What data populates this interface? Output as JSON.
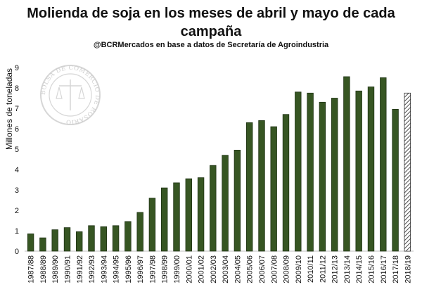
{
  "chart_data": {
    "type": "bar",
    "title": "Molienda de soja en los meses de abril y mayo de cada campaña",
    "subtitle": "@BCRMercados en base a datos de Secretaría de Agroindustria",
    "ylabel": "Millones de toneladas",
    "xlabel": "",
    "ylim": [
      0,
      9
    ],
    "yticks": [
      0,
      1,
      2,
      3,
      4,
      5,
      6,
      7,
      8,
      9
    ],
    "categories": [
      "1987/88",
      "1988/89",
      "1989/90",
      "1990/91",
      "1991/92",
      "1992/93",
      "1993/94",
      "1994/95",
      "1995/96",
      "1996/97",
      "1997/98",
      "1998/99",
      "1999/00",
      "2000/01",
      "2001/02",
      "2002/03",
      "2003/04",
      "2004/05",
      "2005/06",
      "2006/07",
      "2007/08",
      "2008/09",
      "2009/10",
      "2010/11",
      "2011/12",
      "2012/13",
      "2013/14",
      "2014/15",
      "2015/16",
      "2016/17",
      "2017/18",
      "2018/19"
    ],
    "values": [
      0.85,
      0.65,
      1.05,
      1.15,
      0.95,
      1.25,
      1.2,
      1.25,
      1.45,
      1.9,
      2.6,
      3.1,
      3.35,
      3.55,
      3.6,
      4.2,
      4.7,
      4.95,
      6.3,
      6.4,
      6.1,
      6.7,
      7.8,
      7.75,
      7.3,
      7.5,
      8.55,
      7.85,
      8.05,
      8.5,
      6.95,
      7.75
    ],
    "estimated_last": true,
    "colors": {
      "bar": "#375623",
      "bar_outline": "#1f3314",
      "hatch": "#4a4a4a",
      "axis": "#bfbfbf",
      "watermark": "#c9c9c9"
    },
    "watermark": "BOLSA DE COMERCIO DE ROSARIO"
  }
}
